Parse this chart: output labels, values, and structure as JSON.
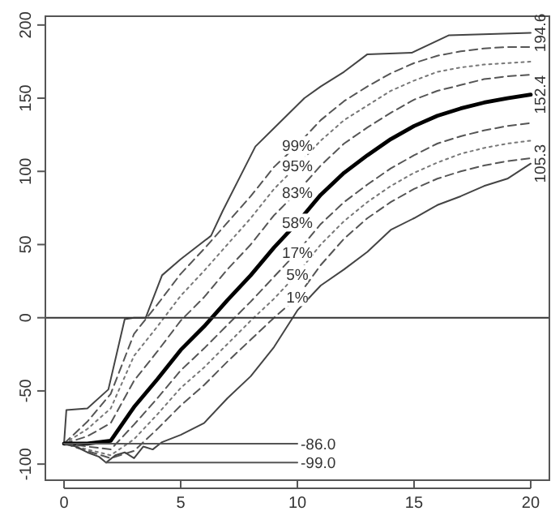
{
  "chart_data": {
    "type": "line",
    "x": [
      0,
      1,
      2,
      3,
      4,
      5,
      6,
      7,
      8,
      9,
      10,
      11,
      12,
      13,
      14,
      15,
      16,
      17,
      18,
      19,
      20
    ],
    "series": [
      {
        "color": "#444444",
        "line_style": "solid",
        "x": [
          0,
          0.1,
          1,
          1.9,
          2.6,
          3,
          3.5,
          4.2,
          5,
          6.3,
          6.8,
          8.2,
          8.9,
          10.3,
          11,
          12,
          13,
          14.9,
          16.5,
          20
        ],
        "values": [
          -86,
          -63,
          -62,
          -49,
          -1,
          0,
          0,
          29,
          40,
          56,
          73,
          117,
          128,
          150,
          158,
          168,
          180,
          181,
          193,
          194.6
        ],
        "value_labels": [
          null,
          null,
          null,
          null,
          null,
          null,
          null,
          null,
          null,
          null,
          null,
          null,
          null,
          null,
          null,
          null,
          null,
          null,
          null,
          "194.6"
        ]
      },
      {
        "name": "99%",
        "color": "#555555",
        "line_style": "dashed",
        "values": [
          -86,
          -71,
          -52,
          -11,
          9,
          30,
          47,
          65,
          83,
          103,
          118,
          135,
          148,
          158,
          167,
          174,
          179,
          182,
          184,
          185,
          185
        ]
      },
      {
        "name": "95%",
        "color": "#777777",
        "line_style": "dotted",
        "values": [
          -86,
          -76,
          -62,
          -26,
          -6,
          15,
          32,
          50,
          68,
          88,
          104,
          121,
          135,
          145,
          155,
          162,
          168,
          171,
          173,
          174,
          175
        ]
      },
      {
        "name": "83%",
        "color": "#555555",
        "line_style": "dashed",
        "values": [
          -86,
          -81,
          -72,
          -43,
          -23,
          -2,
          14,
          33,
          50,
          70,
          86,
          104,
          119,
          130,
          140,
          149,
          155,
          159,
          163,
          165,
          166
        ]
      },
      {
        "name": "58%",
        "color": "#000000",
        "line_style": "solid",
        "values": [
          -86,
          -86,
          -84,
          -61,
          -42,
          -22,
          -6,
          12,
          29,
          48,
          65,
          84,
          99,
          111,
          122,
          131,
          138,
          143,
          147,
          150,
          152.4
        ],
        "value_labels": [
          null,
          null,
          null,
          null,
          null,
          null,
          null,
          null,
          null,
          null,
          null,
          null,
          null,
          null,
          null,
          null,
          null,
          null,
          null,
          null,
          "152.4"
        ]
      },
      {
        "name": "17%",
        "color": "#555555",
        "line_style": "dashed",
        "values": [
          -86,
          -88,
          -90,
          -73,
          -55,
          -36,
          -21,
          -5,
          11,
          28,
          45,
          64,
          79,
          91,
          102,
          111,
          119,
          124,
          128,
          131,
          133
        ]
      },
      {
        "name": "5%",
        "color": "#777777",
        "line_style": "dotted",
        "values": [
          -86,
          -90,
          -94,
          -83,
          -66,
          -48,
          -34,
          -18,
          -2,
          13,
          30,
          50,
          66,
          79,
          90,
          99,
          106,
          112,
          116,
          119,
          121
        ]
      },
      {
        "name": "1%",
        "color": "#555555",
        "line_style": "dashed",
        "values": [
          -86,
          -91,
          -96,
          -91,
          -76,
          -60,
          -46,
          -30,
          -15,
          0,
          14,
          36,
          54,
          68,
          79,
          88,
          95,
          100,
          104,
          107,
          109
        ]
      },
      {
        "color": "#444444",
        "line_style": "solid",
        "x": [
          0,
          0.5,
          1,
          1.5,
          1.8,
          2.2,
          2.6,
          3,
          3.4,
          3.8,
          4.2,
          5,
          6,
          7,
          8,
          9,
          10,
          11,
          12,
          13,
          14,
          15,
          16,
          17,
          18,
          19,
          20
        ],
        "values": [
          -86,
          -88,
          -92,
          -95,
          -99,
          -94,
          -92,
          -96,
          -88,
          -90,
          -85,
          -80,
          -72,
          -55,
          -40,
          -20,
          5,
          22,
          33,
          45,
          60,
          68,
          77,
          83,
          90,
          95,
          105.3
        ],
        "value_labels": [
          null,
          null,
          null,
          null,
          null,
          null,
          null,
          null,
          null,
          null,
          null,
          null,
          null,
          null,
          null,
          null,
          null,
          null,
          null,
          null,
          null,
          null,
          null,
          null,
          null,
          null,
          "105.3"
        ]
      },
      {
        "color": "#555555",
        "line_style": "solid",
        "x": [
          0,
          10
        ],
        "values": [
          -86,
          -86
        ],
        "value_labels": [
          null,
          "-86.0"
        ]
      },
      {
        "color": "#555555",
        "line_style": "solid",
        "x": [
          1.8,
          10
        ],
        "values": [
          -99,
          -99
        ],
        "value_labels": [
          null,
          "-99.0"
        ]
      }
    ],
    "ref_lines": [
      {
        "axis": "y",
        "value": 0,
        "color": "#333333"
      }
    ],
    "xlim": [
      -0.8,
      20.8
    ],
    "xticks": [
      0,
      5,
      10,
      15,
      20
    ],
    "ylim": [
      -111,
      206
    ],
    "yticks": [
      -100,
      -50,
      0,
      50,
      100,
      150,
      200
    ],
    "grid": false
  }
}
